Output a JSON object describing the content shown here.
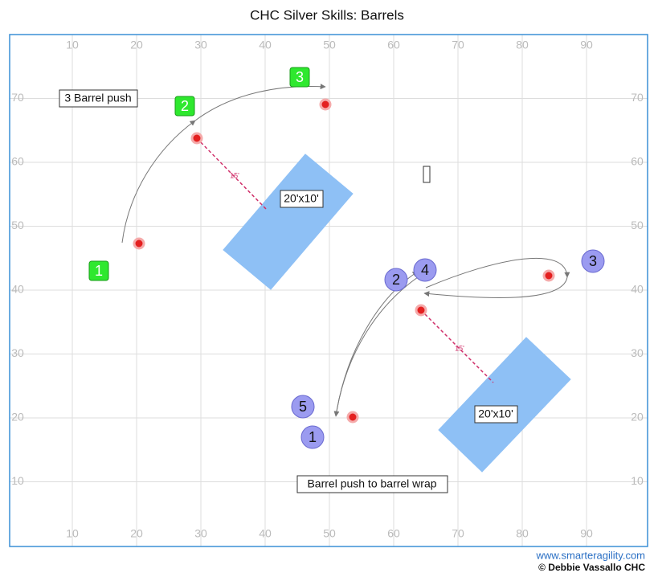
{
  "title": "CHC Silver Skills: Barrels",
  "axes": {
    "x_labels": [
      10,
      20,
      30,
      40,
      50,
      60,
      70,
      80,
      90
    ],
    "y_labels": [
      10,
      20,
      30,
      40,
      50,
      60,
      70
    ]
  },
  "course_labels": [
    "3 Barrel push",
    "Barrel push to barrel wrap"
  ],
  "obstacles": [
    "20'x10'",
    "20'x10'"
  ],
  "distances": [
    "15'",
    "15'"
  ],
  "green_markers": [
    "1",
    "2",
    "3"
  ],
  "purple_markers": [
    "1",
    "2",
    "3",
    "4",
    "5"
  ],
  "footer": {
    "website": "www.smarteragility.com",
    "credit": "© Debbie Vassallo CHC"
  }
}
